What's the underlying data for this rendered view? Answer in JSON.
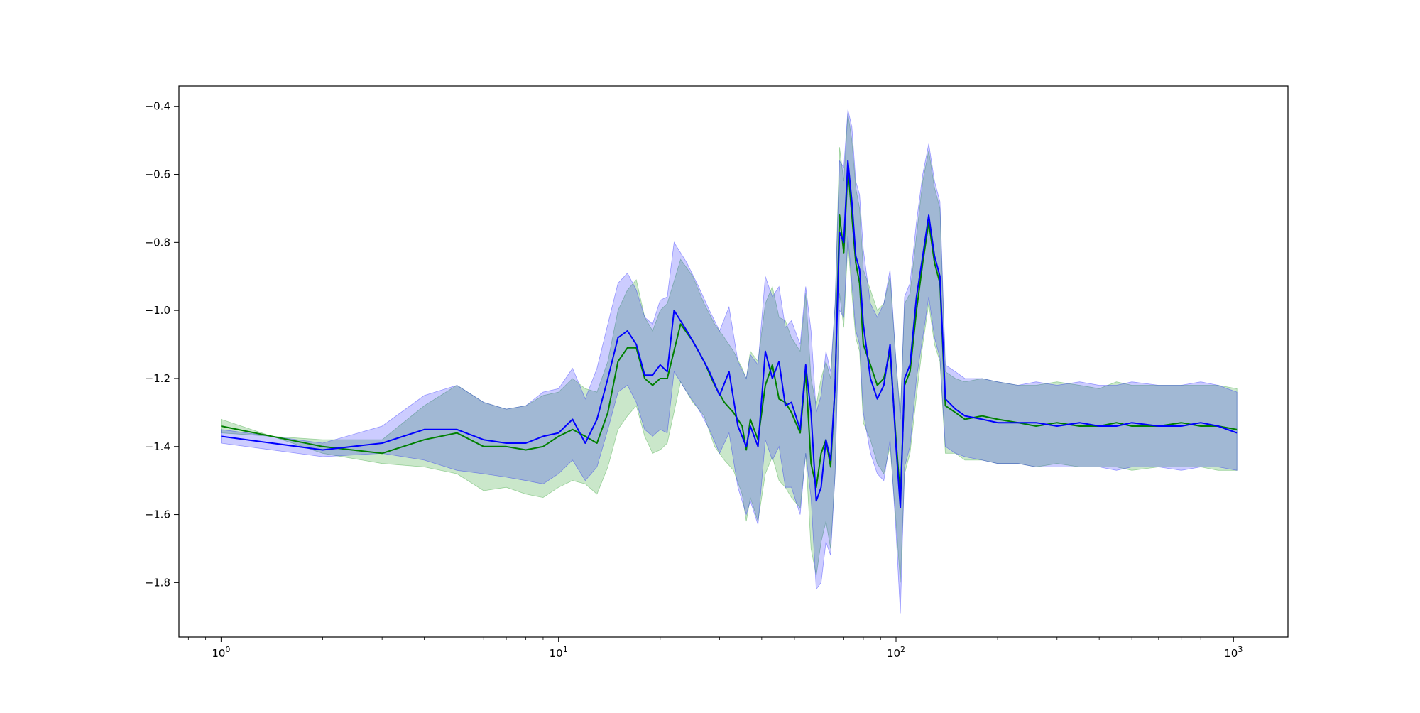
{
  "chart_data": {
    "type": "line",
    "title": "",
    "xlabel": "",
    "ylabel": "",
    "xscale": "log",
    "xlim": [
      0.75,
      1450
    ],
    "ylim": [
      -1.96,
      -0.34
    ],
    "grid": false,
    "legend": "none",
    "x_ticks": [
      {
        "value": 1,
        "base": "10",
        "exp": "0"
      },
      {
        "value": 10,
        "base": "10",
        "exp": "1"
      },
      {
        "value": 100,
        "base": "10",
        "exp": "2"
      },
      {
        "value": 1000,
        "base": "10",
        "exp": "3"
      }
    ],
    "y_ticks": [
      {
        "value": -0.4,
        "label": "−0.4"
      },
      {
        "value": -0.6,
        "label": "−0.6"
      },
      {
        "value": -0.8,
        "label": "−0.8"
      },
      {
        "value": -1.0,
        "label": "−1.0"
      },
      {
        "value": -1.2,
        "label": "−1.2"
      },
      {
        "value": -1.4,
        "label": "−1.4"
      },
      {
        "value": -1.6,
        "label": "−1.6"
      },
      {
        "value": -1.8,
        "label": "−1.8"
      }
    ],
    "series": [
      {
        "color": "#008000",
        "band_color": "#2ca02c",
        "band_opacity": 0.25,
        "points": [
          [
            1,
            -1.34,
            -1.32,
            -1.36
          ],
          [
            2,
            -1.4,
            -1.42,
            -1.38
          ],
          [
            3,
            -1.42,
            -1.45,
            -1.38
          ],
          [
            4,
            -1.38,
            -1.46,
            -1.28
          ],
          [
            5,
            -1.36,
            -1.48,
            -1.22
          ],
          [
            6,
            -1.4,
            -1.53,
            -1.27
          ],
          [
            7,
            -1.4,
            -1.52,
            -1.29
          ],
          [
            8,
            -1.41,
            -1.54,
            -1.28
          ],
          [
            9,
            -1.4,
            -1.55,
            -1.25
          ],
          [
            10,
            -1.37,
            -1.52,
            -1.24
          ],
          [
            11,
            -1.35,
            -1.5,
            -1.2
          ],
          [
            12,
            -1.37,
            -1.51,
            -1.23
          ],
          [
            13,
            -1.39,
            -1.54,
            -1.24
          ],
          [
            14,
            -1.3,
            -1.46,
            -1.15
          ],
          [
            15,
            -1.15,
            -1.35,
            -1.0
          ],
          [
            16,
            -1.11,
            -1.31,
            -0.94
          ],
          [
            17,
            -1.11,
            -1.28,
            -0.91
          ],
          [
            18,
            -1.2,
            -1.37,
            -1.02
          ],
          [
            19,
            -1.22,
            -1.42,
            -1.06
          ],
          [
            20,
            -1.2,
            -1.41,
            -1.0
          ],
          [
            21,
            -1.2,
            -1.39,
            -0.98
          ],
          [
            23,
            -1.04,
            -1.21,
            -0.85
          ],
          [
            25,
            -1.09,
            -1.27,
            -0.9
          ],
          [
            27,
            -1.15,
            -1.31,
            -0.98
          ],
          [
            29,
            -1.22,
            -1.4,
            -1.04
          ],
          [
            31,
            -1.27,
            -1.44,
            -1.08
          ],
          [
            33,
            -1.3,
            -1.47,
            -1.12
          ],
          [
            35,
            -1.34,
            -1.54,
            -1.17
          ],
          [
            36,
            -1.41,
            -1.62,
            -1.2
          ],
          [
            37,
            -1.32,
            -1.55,
            -1.12
          ],
          [
            39,
            -1.38,
            -1.62,
            -1.15
          ],
          [
            41,
            -1.22,
            -1.48,
            -0.98
          ],
          [
            43,
            -1.16,
            -1.43,
            -0.93
          ],
          [
            45,
            -1.26,
            -1.5,
            -1.02
          ],
          [
            47,
            -1.27,
            -1.52,
            -1.03
          ],
          [
            49,
            -1.3,
            -1.55,
            -1.08
          ],
          [
            52,
            -1.36,
            -1.58,
            -1.12
          ],
          [
            54,
            -1.18,
            -1.42,
            -0.95
          ],
          [
            56,
            -1.45,
            -1.7,
            -1.2
          ],
          [
            58,
            -1.52,
            -1.78,
            -1.28
          ],
          [
            60,
            -1.42,
            -1.68,
            -1.2
          ],
          [
            62,
            -1.38,
            -1.62,
            -1.15
          ],
          [
            64,
            -1.46,
            -1.7,
            -1.2
          ],
          [
            66,
            -1.22,
            -1.48,
            -0.98
          ],
          [
            68,
            -0.72,
            -0.95,
            -0.52
          ],
          [
            70,
            -0.83,
            -1.05,
            -0.62
          ],
          [
            72,
            -0.58,
            -0.8,
            -0.42
          ],
          [
            74,
            -0.72,
            -0.95,
            -0.5
          ],
          [
            76,
            -0.86,
            -1.08,
            -0.64
          ],
          [
            78,
            -0.92,
            -1.12,
            -0.7
          ],
          [
            80,
            -1.1,
            -1.33,
            -0.88
          ],
          [
            84,
            -1.16,
            -1.38,
            -0.94
          ],
          [
            88,
            -1.22,
            -1.45,
            -1.0
          ],
          [
            92,
            -1.2,
            -1.48,
            -0.98
          ],
          [
            96,
            -1.12,
            -1.4,
            -0.9
          ],
          [
            100,
            -1.38,
            -1.62,
            -1.15
          ],
          [
            103,
            -1.55,
            -1.8,
            -1.3
          ],
          [
            106,
            -1.22,
            -1.48,
            -0.98
          ],
          [
            110,
            -1.18,
            -1.42,
            -0.95
          ],
          [
            115,
            -1.0,
            -1.25,
            -0.78
          ],
          [
            120,
            -0.86,
            -1.1,
            -0.62
          ],
          [
            125,
            -0.74,
            -0.98,
            -0.53
          ],
          [
            130,
            -0.86,
            -1.1,
            -0.64
          ],
          [
            135,
            -0.92,
            -1.15,
            -0.7
          ],
          [
            140,
            -1.28,
            -1.42,
            -1.18
          ],
          [
            150,
            -1.3,
            -1.42,
            -1.2
          ],
          [
            160,
            -1.32,
            -1.44,
            -1.21
          ],
          [
            180,
            -1.31,
            -1.44,
            -1.2
          ],
          [
            200,
            -1.32,
            -1.45,
            -1.21
          ],
          [
            230,
            -1.33,
            -1.45,
            -1.22
          ],
          [
            260,
            -1.34,
            -1.46,
            -1.22
          ],
          [
            300,
            -1.33,
            -1.45,
            -1.21
          ],
          [
            350,
            -1.34,
            -1.46,
            -1.22
          ],
          [
            400,
            -1.34,
            -1.46,
            -1.23
          ],
          [
            450,
            -1.33,
            -1.46,
            -1.21
          ],
          [
            500,
            -1.34,
            -1.47,
            -1.22
          ],
          [
            600,
            -1.34,
            -1.46,
            -1.22
          ],
          [
            700,
            -1.33,
            -1.46,
            -1.22
          ],
          [
            800,
            -1.34,
            -1.46,
            -1.22
          ],
          [
            900,
            -1.34,
            -1.47,
            -1.22
          ],
          [
            1024,
            -1.35,
            -1.47,
            -1.23
          ]
        ]
      },
      {
        "color": "#0000ff",
        "band_color": "#0000ff",
        "band_opacity": 0.2,
        "points": [
          [
            1,
            -1.37,
            -1.39,
            -1.35
          ],
          [
            2,
            -1.41,
            -1.43,
            -1.39
          ],
          [
            3,
            -1.39,
            -1.42,
            -1.34
          ],
          [
            4,
            -1.35,
            -1.44,
            -1.25
          ],
          [
            5,
            -1.35,
            -1.47,
            -1.22
          ],
          [
            6,
            -1.38,
            -1.48,
            -1.27
          ],
          [
            7,
            -1.39,
            -1.49,
            -1.29
          ],
          [
            8,
            -1.39,
            -1.5,
            -1.28
          ],
          [
            9,
            -1.37,
            -1.51,
            -1.24
          ],
          [
            10,
            -1.36,
            -1.48,
            -1.23
          ],
          [
            11,
            -1.32,
            -1.44,
            -1.17
          ],
          [
            12,
            -1.39,
            -1.5,
            -1.26
          ],
          [
            13,
            -1.32,
            -1.46,
            -1.17
          ],
          [
            14,
            -1.2,
            -1.35,
            -1.04
          ],
          [
            15,
            -1.08,
            -1.24,
            -0.92
          ],
          [
            16,
            -1.06,
            -1.22,
            -0.89
          ],
          [
            17,
            -1.1,
            -1.27,
            -0.94
          ],
          [
            18,
            -1.19,
            -1.35,
            -1.02
          ],
          [
            19,
            -1.19,
            -1.37,
            -1.04
          ],
          [
            20,
            -1.16,
            -1.35,
            -0.97
          ],
          [
            21,
            -1.18,
            -1.36,
            -0.96
          ],
          [
            22,
            -1.0,
            -1.18,
            -0.8
          ],
          [
            24,
            -1.06,
            -1.24,
            -0.86
          ],
          [
            26,
            -1.12,
            -1.29,
            -0.93
          ],
          [
            28,
            -1.18,
            -1.35,
            -1.0
          ],
          [
            30,
            -1.25,
            -1.42,
            -1.06
          ],
          [
            32,
            -1.18,
            -1.36,
            -0.99
          ],
          [
            34,
            -1.34,
            -1.52,
            -1.15
          ],
          [
            36,
            -1.4,
            -1.6,
            -1.2
          ],
          [
            37,
            -1.34,
            -1.56,
            -1.13
          ],
          [
            39,
            -1.4,
            -1.63,
            -1.16
          ],
          [
            41,
            -1.12,
            -1.38,
            -0.9
          ],
          [
            43,
            -1.2,
            -1.44,
            -0.96
          ],
          [
            45,
            -1.15,
            -1.4,
            -0.93
          ],
          [
            47,
            -1.28,
            -1.52,
            -1.05
          ],
          [
            49,
            -1.27,
            -1.52,
            -1.03
          ],
          [
            52,
            -1.35,
            -1.6,
            -1.1
          ],
          [
            54,
            -1.16,
            -1.42,
            -0.93
          ],
          [
            56,
            -1.3,
            -1.55,
            -1.06
          ],
          [
            58,
            -1.56,
            -1.82,
            -1.3
          ],
          [
            60,
            -1.52,
            -1.8,
            -1.25
          ],
          [
            62,
            -1.38,
            -1.68,
            -1.12
          ],
          [
            64,
            -1.44,
            -1.72,
            -1.18
          ],
          [
            66,
            -1.22,
            -1.48,
            -0.98
          ],
          [
            68,
            -0.77,
            -1.0,
            -0.56
          ],
          [
            70,
            -0.8,
            -1.02,
            -0.58
          ],
          [
            72,
            -0.56,
            -0.78,
            -0.41
          ],
          [
            74,
            -0.68,
            -0.92,
            -0.46
          ],
          [
            76,
            -0.84,
            -1.06,
            -0.62
          ],
          [
            78,
            -0.88,
            -1.1,
            -0.66
          ],
          [
            80,
            -1.04,
            -1.3,
            -0.82
          ],
          [
            84,
            -1.2,
            -1.42,
            -0.98
          ],
          [
            88,
            -1.26,
            -1.48,
            -1.02
          ],
          [
            92,
            -1.22,
            -1.5,
            -0.98
          ],
          [
            96,
            -1.1,
            -1.38,
            -0.88
          ],
          [
            100,
            -1.4,
            -1.65,
            -1.15
          ],
          [
            103,
            -1.58,
            -1.89,
            -1.32
          ],
          [
            106,
            -1.2,
            -1.46,
            -0.96
          ],
          [
            110,
            -1.16,
            -1.4,
            -0.92
          ],
          [
            115,
            -0.96,
            -1.2,
            -0.74
          ],
          [
            120,
            -0.84,
            -1.08,
            -0.6
          ],
          [
            125,
            -0.72,
            -0.96,
            -0.51
          ],
          [
            130,
            -0.84,
            -1.08,
            -0.62
          ],
          [
            135,
            -0.9,
            -1.14,
            -0.68
          ],
          [
            140,
            -1.26,
            -1.4,
            -1.16
          ],
          [
            150,
            -1.29,
            -1.42,
            -1.18
          ],
          [
            160,
            -1.31,
            -1.43,
            -1.2
          ],
          [
            180,
            -1.32,
            -1.44,
            -1.2
          ],
          [
            200,
            -1.33,
            -1.45,
            -1.21
          ],
          [
            230,
            -1.33,
            -1.45,
            -1.22
          ],
          [
            260,
            -1.33,
            -1.46,
            -1.21
          ],
          [
            300,
            -1.34,
            -1.46,
            -1.22
          ],
          [
            350,
            -1.33,
            -1.46,
            -1.21
          ],
          [
            400,
            -1.34,
            -1.46,
            -1.22
          ],
          [
            450,
            -1.34,
            -1.47,
            -1.22
          ],
          [
            500,
            -1.33,
            -1.46,
            -1.21
          ],
          [
            600,
            -1.34,
            -1.46,
            -1.22
          ],
          [
            700,
            -1.34,
            -1.47,
            -1.22
          ],
          [
            800,
            -1.33,
            -1.46,
            -1.21
          ],
          [
            900,
            -1.34,
            -1.46,
            -1.22
          ],
          [
            1024,
            -1.36,
            -1.47,
            -1.24
          ]
        ]
      }
    ]
  }
}
